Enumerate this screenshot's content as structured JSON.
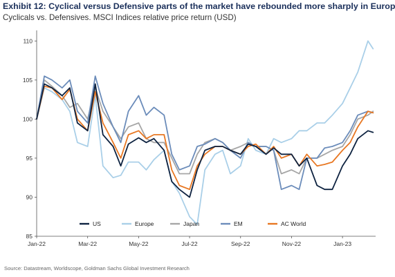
{
  "title": "Exhibit 12: Cyclical versus Defensive parts of the market have rebounded more sharply in Europe",
  "subtitle": "Cyclicals vs. Defensives. MSCI Indices relative price return (USD)",
  "source": "Source: Datastream, Worldscope, Goldman Sachs Global Investment Research",
  "chart_data": {
    "type": "line",
    "x_ticks": [
      "Jan-22",
      "Mar-22",
      "May-22",
      "Jul-22",
      "Sep-22",
      "Nov-22",
      "Jan-23"
    ],
    "y_ticks": [
      85,
      90,
      95,
      100,
      105,
      110
    ],
    "ylim": [
      85,
      111
    ],
    "xlim_months": [
      0,
      13.3
    ],
    "grid": false,
    "legend_position": "bottom",
    "x_months": [
      0,
      0.3,
      0.6,
      1,
      1.3,
      1.6,
      2,
      2.3,
      2.6,
      3,
      3.3,
      3.6,
      4,
      4.3,
      4.6,
      5,
      5.3,
      5.6,
      6,
      6.3,
      6.6,
      7,
      7.3,
      7.6,
      8,
      8.3,
      8.6,
      9,
      9.3,
      9.6,
      10,
      10.3,
      10.6,
      11,
      11.3,
      11.6,
      12,
      12.3,
      12.6,
      13,
      13.2
    ],
    "series": [
      {
        "name": "US",
        "color": "#0d2240",
        "values": [
          100,
          104.5,
          104,
          103,
          104,
          99.5,
          98.5,
          104.5,
          98,
          96.5,
          94,
          96.8,
          97.6,
          97,
          97.5,
          96,
          92,
          91,
          90,
          93.5,
          96,
          96.5,
          96.5,
          96,
          95.5,
          96.8,
          96.5,
          95.5,
          96.3,
          95.5,
          95.5,
          94,
          95,
          91.5,
          91,
          91,
          94,
          95.5,
          97.5,
          98.5,
          98.3
        ]
      },
      {
        "name": "Europe",
        "color": "#a9cfe8",
        "values": [
          100,
          104,
          103.5,
          102.5,
          101,
          97,
          96.5,
          103,
          94,
          92.5,
          92.8,
          94.5,
          94.5,
          93.5,
          94.8,
          96,
          92,
          90.5,
          87.5,
          86.5,
          93.5,
          95.5,
          96,
          93,
          94,
          97.5,
          96,
          95.5,
          97.5,
          97,
          97.5,
          98.5,
          98.5,
          99.5,
          99.5,
          100.5,
          102,
          104,
          106,
          110,
          109
        ]
      },
      {
        "name": "Japan",
        "color": "#a6a6a6",
        "values": [
          100,
          105,
          104.2,
          103,
          101.5,
          102,
          100,
          104,
          101,
          99,
          97.5,
          99,
          99.5,
          97.5,
          97,
          97,
          95,
          93,
          93,
          95.5,
          97,
          97.5,
          97,
          96,
          96.5,
          97,
          96.5,
          96.5,
          96,
          93,
          93.5,
          93,
          95,
          95,
          95.5,
          96,
          96.5,
          98,
          100,
          100.5,
          101
        ]
      },
      {
        "name": "EM",
        "color": "#6b8cba",
        "values": [
          100,
          105.5,
          105,
          104,
          105,
          101,
          99.5,
          105.5,
          102,
          99,
          97,
          101,
          103,
          100.5,
          101.5,
          100.5,
          95.5,
          93.5,
          94,
          96.5,
          96.8,
          97.5,
          97,
          96,
          95,
          97,
          96.5,
          96.5,
          96,
          91,
          91.5,
          91,
          95,
          95,
          96.3,
          96.5,
          97,
          98.5,
          100.5,
          101,
          100.8
        ]
      },
      {
        "name": "AC World",
        "color": "#e87722",
        "values": [
          100,
          104.2,
          104,
          102.5,
          103.8,
          100,
          98.5,
          103.5,
          99.5,
          97,
          95,
          98,
          98.5,
          97.5,
          98,
          98,
          93.5,
          91.5,
          91,
          94,
          95.5,
          96.5,
          96.5,
          96,
          95.5,
          96.5,
          96.8,
          95.5,
          96.5,
          95,
          95.5,
          94,
          95.5,
          94,
          94.2,
          94.5,
          96,
          97,
          99,
          101,
          100.8
        ]
      }
    ]
  }
}
